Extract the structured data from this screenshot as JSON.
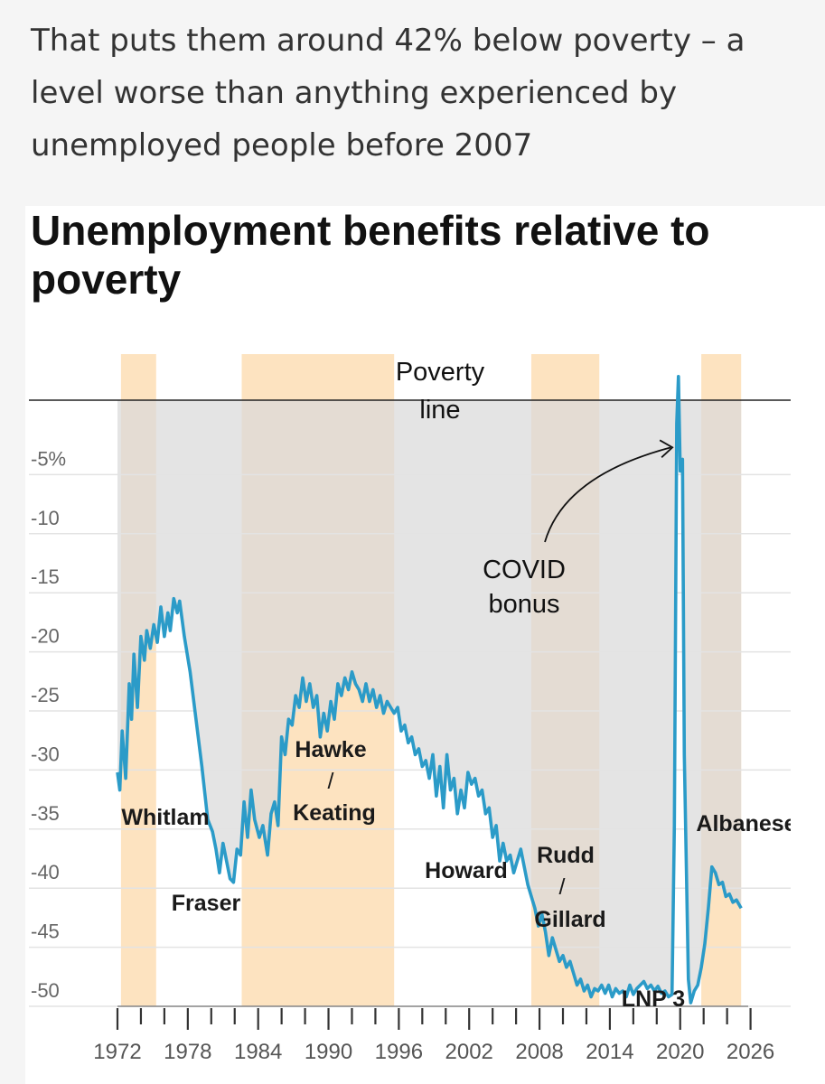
{
  "article": {
    "text": "That puts them around 42% below poverty – a level worse than anything experienced by unemployed people before 2007"
  },
  "colors": {
    "page_background": "#f5f5f5",
    "series": "#2b9bc8",
    "government_band": "#fde3c0",
    "below_poverty_fill": "#d9d9d9",
    "poverty_line": "#222222"
  },
  "chart_data": {
    "type": "line",
    "title": "Unemployment benefits relative to poverty",
    "xlabel": "",
    "ylabel": "",
    "xlim": [
      1972,
      2026.5
    ],
    "ylim": [
      -52,
      0
    ],
    "grid": true,
    "x_tick_labels": [
      "1972",
      "1978",
      "1984",
      "1990",
      "1996",
      "2002",
      "2008",
      "2014",
      "2020",
      "2026"
    ],
    "y_tick_labels": [
      "-5%",
      "-10",
      "-15",
      "-20",
      "-25",
      "-30",
      "-35",
      "-40",
      "-45",
      "-50"
    ],
    "y_tick_values": [
      -5,
      -10,
      -15,
      -20,
      -25,
      -30,
      -35,
      -40,
      -45,
      -50
    ],
    "reference_line": {
      "label": "Poverty line",
      "y": 0
    },
    "annotation": {
      "label": "COVID bonus",
      "x": 2020.4,
      "y": -4
    },
    "governments": [
      {
        "label": "Whitlam",
        "start": 1972.9,
        "end": 1975.9,
        "shaded": true
      },
      {
        "label": "Fraser",
        "start": 1975.9,
        "end": 1983.2,
        "shaded": false
      },
      {
        "label": "Hawke / Keating",
        "start": 1983.2,
        "end": 1996.2,
        "shaded": true
      },
      {
        "label": "Howard",
        "start": 1996.2,
        "end": 2007.9,
        "shaded": false
      },
      {
        "label": "Rudd / Gillard",
        "start": 2007.9,
        "end": 2013.7,
        "shaded": true
      },
      {
        "label": "LNP 3",
        "start": 2013.7,
        "end": 2022.4,
        "shaded": false
      },
      {
        "label": "Albanese",
        "start": 2022.4,
        "end": 2025.8,
        "shaded": true
      }
    ],
    "series": [
      {
        "values": [
          [
            1972.6,
            -31.5
          ],
          [
            1972.8,
            -33
          ],
          [
            1973.0,
            -28
          ],
          [
            1973.3,
            -32
          ],
          [
            1973.6,
            -24
          ],
          [
            1973.8,
            -27
          ],
          [
            1974.0,
            -21.5
          ],
          [
            1974.3,
            -26
          ],
          [
            1974.6,
            -20
          ],
          [
            1974.9,
            -22
          ],
          [
            1975.1,
            -19.5
          ],
          [
            1975.4,
            -21
          ],
          [
            1975.7,
            -19
          ],
          [
            1976.0,
            -20.5
          ],
          [
            1976.3,
            -17.5
          ],
          [
            1976.6,
            -20
          ],
          [
            1976.9,
            -18
          ],
          [
            1977.1,
            -19.5
          ],
          [
            1977.4,
            -16.8
          ],
          [
            1977.7,
            -18
          ],
          [
            1977.9,
            -17
          ],
          [
            1978.3,
            -20
          ],
          [
            1978.8,
            -23
          ],
          [
            1979.3,
            -27
          ],
          [
            1979.8,
            -31
          ],
          [
            1980.3,
            -35.5
          ],
          [
            1980.7,
            -36.5
          ],
          [
            1981.0,
            -38
          ],
          [
            1981.3,
            -40
          ],
          [
            1981.6,
            -37.5
          ],
          [
            1981.9,
            -39
          ],
          [
            1982.2,
            -40.5
          ],
          [
            1982.5,
            -40.8
          ],
          [
            1982.8,
            -38
          ],
          [
            1983.1,
            -38.5
          ],
          [
            1983.4,
            -34
          ],
          [
            1983.7,
            -37
          ],
          [
            1984.0,
            -33
          ],
          [
            1984.3,
            -35.5
          ],
          [
            1984.7,
            -37
          ],
          [
            1985.0,
            -36
          ],
          [
            1985.4,
            -38.5
          ],
          [
            1985.7,
            -35
          ],
          [
            1986.0,
            -34
          ],
          [
            1986.3,
            -36
          ],
          [
            1986.6,
            -28.5
          ],
          [
            1986.9,
            -30
          ],
          [
            1987.2,
            -27
          ],
          [
            1987.5,
            -27.5
          ],
          [
            1987.8,
            -25
          ],
          [
            1988.1,
            -26
          ],
          [
            1988.4,
            -23.5
          ],
          [
            1988.7,
            -25.5
          ],
          [
            1989.0,
            -24
          ],
          [
            1989.3,
            -26
          ],
          [
            1989.6,
            -25
          ],
          [
            1989.9,
            -28.5
          ],
          [
            1990.2,
            -26.5
          ],
          [
            1990.5,
            -28
          ],
          [
            1990.8,
            -25.5
          ],
          [
            1991.1,
            -27
          ],
          [
            1991.4,
            -24
          ],
          [
            1991.7,
            -25
          ],
          [
            1992.0,
            -23.5
          ],
          [
            1992.3,
            -24.5
          ],
          [
            1992.6,
            -23
          ],
          [
            1992.9,
            -24
          ],
          [
            1993.2,
            -24.5
          ],
          [
            1993.5,
            -25.5
          ],
          [
            1993.8,
            -24
          ],
          [
            1994.1,
            -25.5
          ],
          [
            1994.4,
            -24.5
          ],
          [
            1994.7,
            -26
          ],
          [
            1995.0,
            -25
          ],
          [
            1995.3,
            -26.5
          ],
          [
            1995.6,
            -25.5
          ],
          [
            1995.9,
            -26
          ],
          [
            1996.2,
            -26.5
          ],
          [
            1996.5,
            -26
          ],
          [
            1996.8,
            -28
          ],
          [
            1997.1,
            -27.5
          ],
          [
            1997.4,
            -29
          ],
          [
            1997.7,
            -28.5
          ],
          [
            1998.0,
            -30
          ],
          [
            1998.3,
            -29.5
          ],
          [
            1998.6,
            -31
          ],
          [
            1998.9,
            -30.5
          ],
          [
            1999.2,
            -32
          ],
          [
            1999.5,
            -30
          ],
          [
            1999.8,
            -33.5
          ],
          [
            2000.1,
            -31
          ],
          [
            2000.4,
            -34.5
          ],
          [
            2000.7,
            -30
          ],
          [
            2001.0,
            -33
          ],
          [
            2001.3,
            -32
          ],
          [
            2001.6,
            -35
          ],
          [
            2001.9,
            -33
          ],
          [
            2002.2,
            -34.5
          ],
          [
            2002.5,
            -31.5
          ],
          [
            2002.8,
            -32.5
          ],
          [
            2003.1,
            -32
          ],
          [
            2003.4,
            -33.5
          ],
          [
            2003.7,
            -33
          ],
          [
            2004.0,
            -35
          ],
          [
            2004.3,
            -34.5
          ],
          [
            2004.6,
            -37
          ],
          [
            2004.9,
            -36
          ],
          [
            2005.2,
            -39
          ],
          [
            2005.5,
            -37.5
          ],
          [
            2005.8,
            -39
          ],
          [
            2006.1,
            -38.5
          ],
          [
            2006.4,
            -40
          ],
          [
            2006.7,
            -39
          ],
          [
            2007.0,
            -38
          ],
          [
            2007.3,
            -39.5
          ],
          [
            2007.6,
            -41
          ],
          [
            2007.9,
            -42
          ],
          [
            2008.2,
            -43
          ],
          [
            2008.5,
            -44.5
          ],
          [
            2008.8,
            -43.5
          ],
          [
            2009.1,
            -45
          ],
          [
            2009.4,
            -47
          ],
          [
            2009.7,
            -45.5
          ],
          [
            2010.0,
            -46.5
          ],
          [
            2010.3,
            -47.5
          ],
          [
            2010.6,
            -47
          ],
          [
            2010.9,
            -48
          ],
          [
            2011.2,
            -47.5
          ],
          [
            2011.5,
            -48.5
          ],
          [
            2011.8,
            -49.5
          ],
          [
            2012.1,
            -49
          ],
          [
            2012.4,
            -50
          ],
          [
            2012.7,
            -49.5
          ],
          [
            2013.0,
            -50.5
          ],
          [
            2013.3,
            -49.8
          ],
          [
            2013.6,
            -50
          ],
          [
            2013.9,
            -49.5
          ],
          [
            2014.2,
            -50.2
          ],
          [
            2014.5,
            -49.5
          ],
          [
            2014.8,
            -50.5
          ],
          [
            2015.1,
            -49.8
          ],
          [
            2015.4,
            -50.2
          ],
          [
            2015.7,
            -50
          ],
          [
            2016.0,
            -50.5
          ],
          [
            2016.3,
            -49.5
          ],
          [
            2016.6,
            -50.3
          ],
          [
            2016.9,
            -49.8
          ],
          [
            2017.2,
            -49.5
          ],
          [
            2017.5,
            -49.2
          ],
          [
            2017.8,
            -49.8
          ],
          [
            2018.1,
            -49.5
          ],
          [
            2018.4,
            -50
          ],
          [
            2018.7,
            -49.6
          ],
          [
            2019.0,
            -50.2
          ],
          [
            2019.3,
            -50
          ],
          [
            2019.6,
            -50.5
          ],
          [
            2019.9,
            -50.3
          ],
          [
            2020.1,
            -36
          ],
          [
            2020.3,
            -2
          ],
          [
            2020.45,
            2
          ],
          [
            2020.6,
            -6
          ],
          [
            2020.8,
            -5
          ],
          [
            2020.95,
            -30
          ],
          [
            2021.1,
            -38
          ],
          [
            2021.3,
            -49
          ],
          [
            2021.5,
            -51
          ],
          [
            2021.8,
            -50
          ],
          [
            2022.1,
            -49.5
          ],
          [
            2022.4,
            -48
          ],
          [
            2022.7,
            -46
          ],
          [
            2023.0,
            -43
          ],
          [
            2023.3,
            -39.5
          ],
          [
            2023.6,
            -40
          ],
          [
            2023.9,
            -41
          ],
          [
            2024.2,
            -40.8
          ],
          [
            2024.5,
            -42
          ],
          [
            2024.8,
            -41.8
          ],
          [
            2025.1,
            -42.5
          ],
          [
            2025.4,
            -42.3
          ],
          [
            2025.8,
            -43
          ]
        ]
      }
    ]
  }
}
